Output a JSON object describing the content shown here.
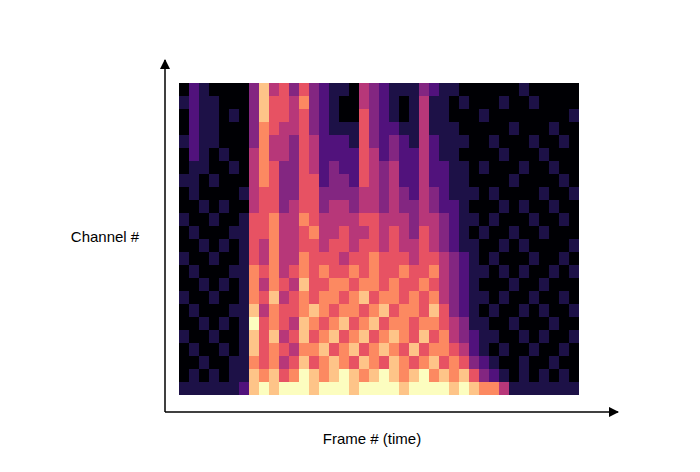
{
  "chart_data": {
    "type": "heatmap",
    "x_label": "Frame # (time)",
    "y_label": "Channel #",
    "tick_labels": false,
    "values": [
      [
        2,
        2,
        2,
        2,
        2,
        2,
        3,
        8,
        9,
        8,
        9,
        9,
        9,
        8,
        9,
        9,
        9,
        8,
        9,
        9,
        9,
        9,
        8,
        9,
        9,
        9,
        9,
        8,
        9,
        8,
        7,
        7,
        5,
        2,
        2,
        2,
        2,
        2,
        2,
        2
      ],
      [
        1,
        2,
        1,
        2,
        1,
        2,
        2,
        8,
        7,
        8,
        6,
        7,
        9,
        8,
        7,
        8,
        9,
        8,
        7,
        8,
        9,
        8,
        7,
        8,
        9,
        7,
        8,
        7,
        8,
        6,
        4,
        3,
        2,
        1,
        2,
        1,
        2,
        1,
        2,
        1
      ],
      [
        1,
        1,
        2,
        1,
        1,
        2,
        2,
        7,
        6,
        7,
        5,
        6,
        8,
        6,
        7,
        8,
        7,
        6,
        8,
        7,
        6,
        8,
        7,
        6,
        7,
        8,
        6,
        7,
        6,
        4,
        3,
        2,
        1,
        1,
        2,
        1,
        1,
        2,
        1,
        1
      ],
      [
        1,
        2,
        1,
        1,
        2,
        1,
        2,
        8,
        6,
        7,
        6,
        5,
        7,
        7,
        8,
        6,
        7,
        8,
        6,
        7,
        8,
        7,
        6,
        8,
        6,
        7,
        7,
        6,
        5,
        3,
        2,
        1,
        2,
        1,
        1,
        2,
        1,
        1,
        2,
        1
      ],
      [
        2,
        1,
        1,
        2,
        1,
        1,
        2,
        8,
        6,
        8,
        5,
        6,
        8,
        6,
        7,
        8,
        6,
        7,
        8,
        6,
        7,
        8,
        7,
        6,
        8,
        6,
        7,
        5,
        4,
        3,
        2,
        2,
        1,
        1,
        2,
        1,
        2,
        1,
        1,
        2
      ],
      [
        1,
        1,
        2,
        1,
        2,
        1,
        2,
        9,
        6,
        7,
        6,
        5,
        8,
        7,
        6,
        7,
        8,
        6,
        7,
        8,
        6,
        7,
        7,
        6,
        7,
        7,
        6,
        5,
        4,
        2,
        2,
        1,
        1,
        2,
        1,
        1,
        1,
        2,
        1,
        1
      ],
      [
        1,
        2,
        1,
        1,
        1,
        2,
        2,
        8,
        5,
        7,
        6,
        6,
        7,
        8,
        7,
        6,
        7,
        7,
        6,
        7,
        8,
        6,
        7,
        7,
        6,
        8,
        6,
        4,
        3,
        2,
        1,
        2,
        1,
        1,
        2,
        1,
        2,
        1,
        1,
        2
      ],
      [
        2,
        1,
        1,
        2,
        1,
        1,
        2,
        7,
        6,
        8,
        5,
        6,
        7,
        6,
        7,
        7,
        6,
        7,
        8,
        6,
        7,
        7,
        6,
        7,
        6,
        7,
        5,
        4,
        3,
        2,
        2,
        1,
        2,
        1,
        1,
        2,
        1,
        1,
        2,
        1
      ],
      [
        1,
        1,
        2,
        1,
        2,
        1,
        2,
        7,
        5,
        7,
        6,
        5,
        8,
        6,
        6,
        7,
        7,
        6,
        7,
        7,
        6,
        7,
        6,
        6,
        7,
        6,
        5,
        4,
        3,
        2,
        1,
        1,
        1,
        2,
        1,
        1,
        2,
        1,
        1,
        1
      ],
      [
        1,
        2,
        1,
        1,
        1,
        2,
        2,
        7,
        6,
        7,
        5,
        6,
        7,
        6,
        7,
        6,
        6,
        7,
        6,
        7,
        6,
        6,
        7,
        6,
        6,
        7,
        5,
        4,
        3,
        2,
        2,
        1,
        2,
        1,
        2,
        1,
        1,
        2,
        1,
        2
      ],
      [
        2,
        1,
        1,
        2,
        1,
        1,
        2,
        6,
        5,
        7,
        5,
        5,
        7,
        6,
        6,
        6,
        5,
        6,
        6,
        7,
        6,
        6,
        6,
        5,
        6,
        6,
        5,
        4,
        3,
        2,
        1,
        2,
        1,
        1,
        1,
        2,
        1,
        1,
        2,
        1
      ],
      [
        1,
        1,
        2,
        1,
        2,
        1,
        2,
        6,
        5,
        7,
        5,
        5,
        6,
        6,
        5,
        6,
        6,
        5,
        6,
        6,
        5,
        6,
        5,
        5,
        6,
        5,
        4,
        3,
        2,
        2,
        1,
        1,
        2,
        1,
        2,
        1,
        1,
        1,
        1,
        2
      ],
      [
        1,
        2,
        1,
        1,
        1,
        2,
        2,
        6,
        6,
        7,
        5,
        5,
        6,
        7,
        5,
        5,
        6,
        5,
        5,
        6,
        5,
        6,
        5,
        4,
        6,
        5,
        4,
        3,
        2,
        1,
        2,
        1,
        1,
        2,
        1,
        1,
        2,
        1,
        1,
        1
      ],
      [
        2,
        1,
        1,
        2,
        1,
        1,
        2,
        6,
        6,
        7,
        5,
        5,
        7,
        6,
        5,
        5,
        5,
        5,
        6,
        6,
        5,
        5,
        5,
        4,
        5,
        5,
        4,
        3,
        2,
        2,
        1,
        2,
        1,
        1,
        1,
        2,
        1,
        1,
        2,
        1
      ],
      [
        1,
        1,
        2,
        1,
        2,
        1,
        1,
        5,
        6,
        6,
        4,
        5,
        6,
        6,
        4,
        5,
        5,
        4,
        5,
        5,
        4,
        5,
        4,
        4,
        5,
        4,
        3,
        3,
        2,
        1,
        1,
        1,
        2,
        1,
        2,
        1,
        1,
        2,
        1,
        1
      ],
      [
        1,
        2,
        1,
        1,
        1,
        1,
        2,
        5,
        6,
        6,
        4,
        4,
        6,
        6,
        4,
        4,
        4,
        4,
        5,
        5,
        4,
        5,
        4,
        3,
        5,
        4,
        3,
        2,
        2,
        2,
        1,
        2,
        1,
        1,
        1,
        1,
        2,
        1,
        1,
        2
      ],
      [
        2,
        2,
        1,
        2,
        1,
        1,
        1,
        5,
        7,
        6,
        4,
        4,
        6,
        6,
        3,
        4,
        4,
        3,
        6,
        5,
        4,
        5,
        3,
        3,
        5,
        3,
        3,
        2,
        2,
        1,
        1,
        1,
        1,
        2,
        1,
        1,
        1,
        1,
        2,
        1
      ],
      [
        1,
        2,
        2,
        1,
        1,
        2,
        1,
        5,
        7,
        6,
        4,
        4,
        6,
        5,
        3,
        4,
        3,
        3,
        6,
        5,
        4,
        5,
        3,
        3,
        5,
        3,
        3,
        2,
        2,
        1,
        2,
        1,
        1,
        1,
        2,
        1,
        1,
        2,
        1,
        1
      ],
      [
        1,
        3,
        2,
        1,
        2,
        1,
        1,
        5,
        7,
        5,
        5,
        4,
        6,
        5,
        3,
        3,
        3,
        3,
        6,
        5,
        3,
        4,
        3,
        3,
        5,
        3,
        2,
        2,
        1,
        1,
        1,
        1,
        2,
        1,
        1,
        1,
        2,
        1,
        1,
        1
      ],
      [
        2,
        3,
        2,
        2,
        1,
        1,
        1,
        4,
        7,
        5,
        5,
        4,
        6,
        5,
        3,
        3,
        3,
        2,
        6,
        4,
        3,
        4,
        3,
        2,
        5,
        3,
        2,
        2,
        2,
        1,
        1,
        2,
        1,
        1,
        1,
        2,
        1,
        1,
        2,
        1
      ],
      [
        1,
        3,
        2,
        2,
        1,
        1,
        1,
        4,
        7,
        6,
        5,
        5,
        6,
        4,
        3,
        2,
        2,
        2,
        6,
        4,
        3,
        3,
        2,
        2,
        5,
        2,
        2,
        2,
        1,
        1,
        1,
        1,
        1,
        2,
        1,
        1,
        1,
        2,
        1,
        1
      ],
      [
        1,
        3,
        2,
        2,
        1,
        2,
        1,
        4,
        8,
        6,
        6,
        5,
        6,
        4,
        3,
        2,
        1,
        1,
        6,
        4,
        3,
        2,
        1,
        2,
        5,
        2,
        2,
        1,
        1,
        1,
        2,
        1,
        1,
        1,
        1,
        1,
        1,
        1,
        1,
        2
      ],
      [
        2,
        3,
        2,
        2,
        1,
        1,
        1,
        4,
        8,
        6,
        6,
        5,
        7,
        4,
        3,
        2,
        1,
        1,
        5,
        4,
        3,
        2,
        1,
        2,
        5,
        2,
        2,
        1,
        2,
        1,
        1,
        1,
        2,
        1,
        1,
        2,
        1,
        1,
        1,
        1
      ],
      [
        1,
        3,
        2,
        1,
        1,
        1,
        1,
        4,
        8,
        5,
        6,
        4,
        6,
        4,
        3,
        2,
        2,
        1,
        5,
        4,
        3,
        2,
        2,
        2,
        4,
        3,
        2,
        2,
        1,
        1,
        1,
        1,
        1,
        1,
        2,
        1,
        1,
        1,
        1,
        1
      ]
    ]
  }
}
